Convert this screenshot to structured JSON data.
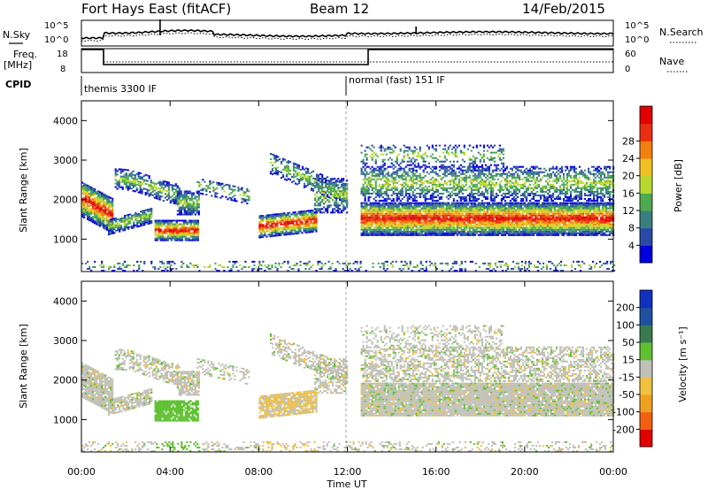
{
  "header": {
    "station": "Fort Hays East (fitACF)",
    "beam": "Beam 12",
    "date": "14/Feb/2015"
  },
  "nsky_panel": {
    "left_label": "N.Sky",
    "right_label": "N.Search",
    "left_ticks": [
      "10^5",
      "10^0"
    ],
    "right_ticks": [
      "10^5",
      "10^0"
    ]
  },
  "freq_panel": {
    "left_label_1": "Freq.",
    "left_label_2": "[MHz]",
    "right_label": "Nave",
    "left_ticks": [
      "18",
      "8"
    ],
    "right_ticks": [
      "60",
      "0"
    ]
  },
  "cpid_panel": {
    "label": "CPID",
    "mode_1": "themis 3300 IF",
    "mode_2": "normal (fast) 151 IF"
  },
  "chart_data": [
    {
      "type": "heatmap",
      "name": "power",
      "ylabel": "Slant Range [km]",
      "yticks": [
        "1000",
        "2000",
        "3000",
        "4000"
      ],
      "ylim": [
        180,
        4500
      ],
      "xlim": [
        0,
        24
      ],
      "colorbar_label": "Power [dB]",
      "colorbar_ticks": [
        "4",
        "8",
        "12",
        "16",
        "20",
        "24",
        "28"
      ],
      "colors": [
        "#0000dd",
        "#2a4aa8",
        "#3a7f7f",
        "#4daa50",
        "#b8d830",
        "#f0c020",
        "#f08010",
        "#e83010",
        "#e00000"
      ]
    },
    {
      "type": "heatmap",
      "name": "velocity",
      "ylabel": "Slant Range [km]",
      "yticks": [
        "1000",
        "2000",
        "3000",
        "4000"
      ],
      "ylim": [
        180,
        4500
      ],
      "xlim": [
        0,
        24
      ],
      "colorbar_label": "Velocity [m s⁻¹]",
      "colorbar_ticks": [
        "200",
        "100",
        "50",
        "15",
        "-15",
        "-50",
        "-100",
        "-200"
      ],
      "colors": [
        "#1030c0",
        "#2050a0",
        "#3a7a50",
        "#5ec030",
        "#c0c0b8",
        "#f0c040",
        "#f0a020",
        "#f06010",
        "#e00000"
      ]
    }
  ],
  "x_axis": {
    "ticks": [
      "00:00",
      "04:00",
      "08:00",
      "12:00",
      "16:00",
      "20:00",
      "00:00"
    ],
    "label": "Time UT"
  }
}
